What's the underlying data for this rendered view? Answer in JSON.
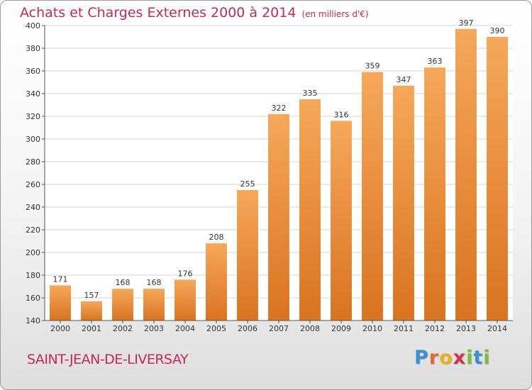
{
  "header": {
    "title": "Achats et Charges Externes 2000 à 2014",
    "unit": "(en milliers d'€)"
  },
  "footer": {
    "location": "SAINT-JEAN-DE-LIVERSAY",
    "brand": "Proxiti",
    "brand_letters": [
      {
        "char": "P",
        "color": "#3a8fd6"
      },
      {
        "char": "r",
        "color": "#e8692a"
      },
      {
        "char": "o",
        "color": "#e8b21e"
      },
      {
        "char": "x",
        "color": "#d6304a"
      },
      {
        "char": "i",
        "color": "#7bbf3a"
      },
      {
        "char": "t",
        "color": "#3a8fd6"
      },
      {
        "char": "i",
        "color": "#7bbf3a"
      }
    ]
  },
  "colors": {
    "title": "#c42a55",
    "bar_top": "#f5a85a",
    "bar_bottom": "#d9731f",
    "grid": "#d4d4d4",
    "axis": "#555555"
  },
  "chart_data": {
    "type": "bar",
    "title": "Achats et Charges Externes 2000 à 2014",
    "subtitle": "(en milliers d'€)",
    "categories": [
      "2000",
      "2001",
      "2002",
      "2003",
      "2004",
      "2005",
      "2006",
      "2007",
      "2008",
      "2009",
      "2010",
      "2011",
      "2012",
      "2013",
      "2014"
    ],
    "values": [
      171,
      157,
      168,
      168,
      176,
      208,
      255,
      322,
      335,
      316,
      359,
      347,
      363,
      397,
      390
    ],
    "ylim": [
      140,
      400
    ],
    "yticks": [
      140,
      160,
      180,
      200,
      220,
      240,
      260,
      280,
      300,
      320,
      340,
      360,
      380,
      400
    ],
    "grid": true,
    "data_labels": true
  }
}
